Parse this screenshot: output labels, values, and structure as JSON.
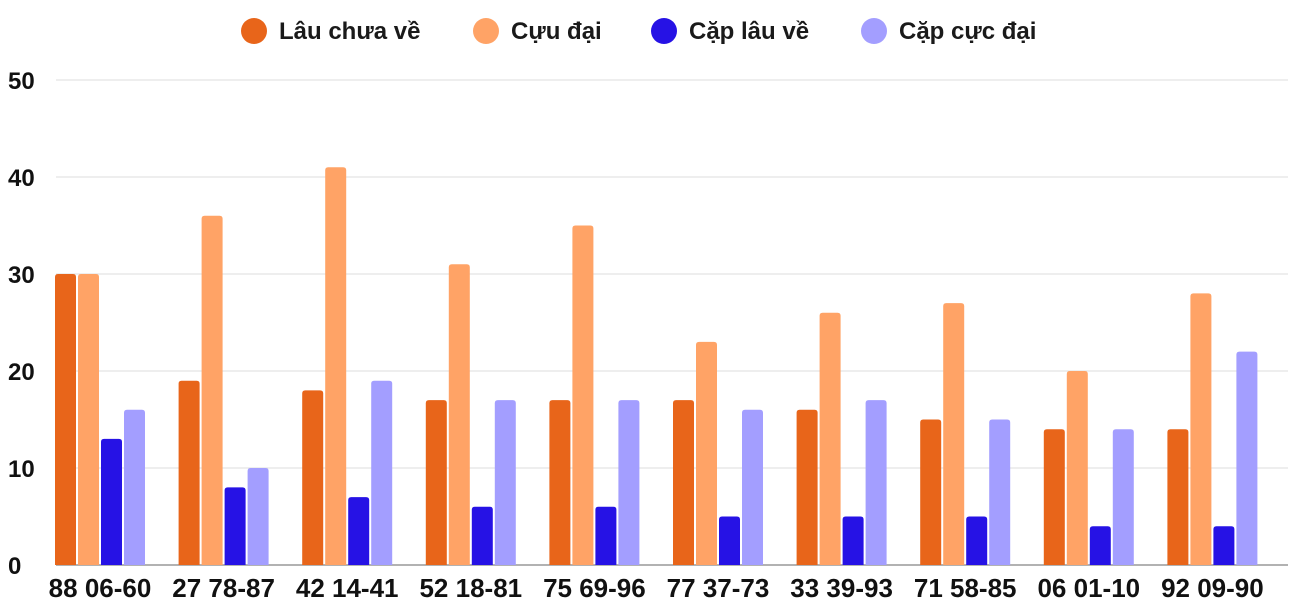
{
  "chart_data": {
    "type": "bar",
    "categories": [
      "88 06-60",
      "27 78-87",
      "42 14-41",
      "52 18-81",
      "75 69-96",
      "77 37-73",
      "33 39-93",
      "71 58-85",
      "06 01-10",
      "92 09-90"
    ],
    "series": [
      {
        "name": "Lâu chưa về",
        "color": "#E8651A",
        "values": [
          30,
          19,
          18,
          17,
          17,
          17,
          16,
          15,
          14,
          14
        ]
      },
      {
        "name": "Cựu đại",
        "color": "#FFA366",
        "values": [
          30,
          36,
          41,
          31,
          35,
          23,
          26,
          27,
          20,
          28
        ]
      },
      {
        "name": "Cặp lâu về",
        "color": "#2612E5",
        "values": [
          13,
          8,
          7,
          6,
          6,
          5,
          5,
          5,
          4,
          4
        ]
      },
      {
        "name": "Cặp cực đại",
        "color": "#A39EFF",
        "values": [
          16,
          10,
          19,
          17,
          17,
          16,
          17,
          15,
          14,
          22
        ]
      }
    ],
    "ylim": [
      0,
      50
    ],
    "yticks": [
      "0",
      "10",
      "20",
      "30",
      "40",
      "50"
    ],
    "grid": true,
    "legend": "top-center"
  }
}
